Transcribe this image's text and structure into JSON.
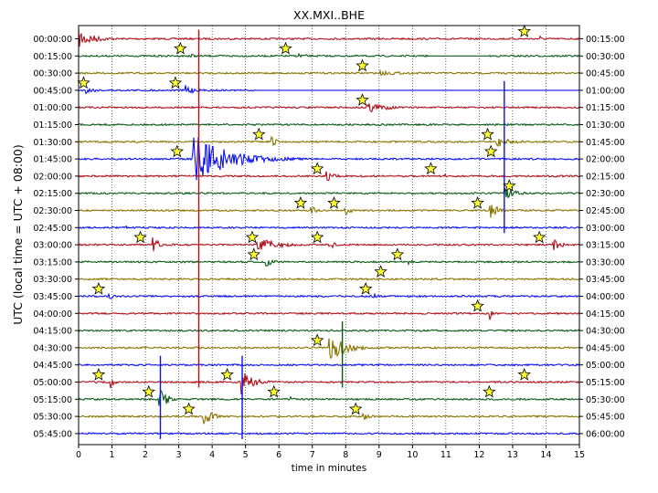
{
  "chart_data": {
    "type": "line",
    "title": "XX.MXI..BHE",
    "xlabel": "time in minutes",
    "ylabel": "UTC (local time = UTC + 08:00)",
    "xlim": [
      0,
      15
    ],
    "x_ticks": [
      "0",
      "1",
      "2",
      "3",
      "4",
      "5",
      "6",
      "7",
      "8",
      "9",
      "10",
      "11",
      "12",
      "13",
      "14",
      "15"
    ],
    "left_labels": [
      "00:00:00",
      "00:15:00",
      "00:30:00",
      "00:45:00",
      "01:00:00",
      "01:15:00",
      "01:30:00",
      "01:45:00",
      "02:00:00",
      "02:15:00",
      "02:30:00",
      "02:45:00",
      "03:00:00",
      "03:15:00",
      "03:30:00",
      "03:45:00",
      "04:00:00",
      "04:15:00",
      "04:30:00",
      "04:45:00",
      "05:00:00",
      "05:15:00",
      "05:30:00",
      "05:45:00"
    ],
    "right_labels": [
      "00:15:00",
      "00:30:00",
      "00:45:00",
      "01:00:00",
      "01:15:00",
      "01:30:00",
      "01:45:00",
      "02:00:00",
      "02:15:00",
      "02:30:00",
      "02:45:00",
      "03:00:00",
      "03:15:00",
      "03:30:00",
      "03:45:00",
      "04:00:00",
      "04:15:00",
      "04:30:00",
      "04:45:00",
      "05:00:00",
      "05:15:00",
      "05:30:00",
      "05:45:00",
      "06:00:00"
    ],
    "trace_colors": [
      "#b0101a",
      "#0c5a17",
      "#8a7500",
      "#0a10f0"
    ],
    "grid": "vertical dotted at each minute",
    "star_color": "#ffff33",
    "events": [
      {
        "row": 0,
        "minute": 13.35
      },
      {
        "row": 1,
        "minute": 3.05
      },
      {
        "row": 1,
        "minute": 6.2
      },
      {
        "row": 2,
        "minute": 8.5
      },
      {
        "row": 3,
        "minute": 0.15
      },
      {
        "row": 3,
        "minute": 2.9
      },
      {
        "row": 4,
        "minute": 8.5
      },
      {
        "row": 6,
        "minute": 5.4
      },
      {
        "row": 6,
        "minute": 12.25
      },
      {
        "row": 7,
        "minute": 2.95
      },
      {
        "row": 7,
        "minute": 12.35
      },
      {
        "row": 8,
        "minute": 7.15
      },
      {
        "row": 8,
        "minute": 10.55
      },
      {
        "row": 9,
        "minute": 12.9
      },
      {
        "row": 10,
        "minute": 6.65
      },
      {
        "row": 10,
        "minute": 7.65
      },
      {
        "row": 10,
        "minute": 11.95
      },
      {
        "row": 12,
        "minute": 1.85
      },
      {
        "row": 12,
        "minute": 5.2
      },
      {
        "row": 12,
        "minute": 7.15
      },
      {
        "row": 12,
        "minute": 13.8
      },
      {
        "row": 13,
        "minute": 5.25
      },
      {
        "row": 13,
        "minute": 9.55
      },
      {
        "row": 14,
        "minute": 9.05
      },
      {
        "row": 15,
        "minute": 0.6
      },
      {
        "row": 15,
        "minute": 8.6
      },
      {
        "row": 16,
        "minute": 11.95
      },
      {
        "row": 18,
        "minute": 7.15
      },
      {
        "row": 20,
        "minute": 0.6
      },
      {
        "row": 20,
        "minute": 4.45
      },
      {
        "row": 20,
        "minute": 13.35
      },
      {
        "row": 21,
        "minute": 2.1
      },
      {
        "row": 21,
        "minute": 5.85
      },
      {
        "row": 21,
        "minute": 12.3
      },
      {
        "row": 22,
        "minute": 3.3
      },
      {
        "row": 22,
        "minute": 8.3
      }
    ],
    "bursts": [
      {
        "row": 0,
        "minute": 0.0,
        "amp": 11,
        "dur": 1.6
      },
      {
        "row": 0,
        "minute": 13.8,
        "amp": 7,
        "dur": 0.15
      },
      {
        "row": 1,
        "minute": 3.3,
        "amp": 6,
        "dur": 0.4
      },
      {
        "row": 1,
        "minute": 6.55,
        "amp": 4,
        "dur": 0.9
      },
      {
        "row": 2,
        "minute": 9.0,
        "amp": 3,
        "dur": 2.5
      },
      {
        "row": 3,
        "minute": 0.2,
        "amp": 4,
        "dur": 1.2
      },
      {
        "row": 3,
        "minute": 3.15,
        "amp": 9,
        "dur": 0.8
      },
      {
        "row": 4,
        "minute": 8.6,
        "amp": 7,
        "dur": 2.0
      },
      {
        "row": 6,
        "minute": 5.75,
        "amp": 7,
        "dur": 0.6
      },
      {
        "row": 6,
        "minute": 12.5,
        "amp": 7,
        "dur": 1.5
      },
      {
        "row": 7,
        "minute": 3.4,
        "amp": 30,
        "dur": 3.5
      },
      {
        "row": 8,
        "minute": 7.4,
        "amp": 7,
        "dur": 0.8
      },
      {
        "row": 8,
        "minute": 10.95,
        "amp": 12,
        "dur": 0.1
      },
      {
        "row": 9,
        "minute": 12.75,
        "amp": 8,
        "dur": 1.2
      },
      {
        "row": 10,
        "minute": 6.95,
        "amp": 10,
        "dur": 0.4
      },
      {
        "row": 10,
        "minute": 7.95,
        "amp": 7,
        "dur": 0.6
      },
      {
        "row": 10,
        "minute": 12.3,
        "amp": 11,
        "dur": 0.8
      },
      {
        "row": 11,
        "minute": 1.4,
        "amp": 4,
        "dur": 0.2
      },
      {
        "row": 12,
        "minute": 2.2,
        "amp": 9,
        "dur": 0.8
      },
      {
        "row": 12,
        "minute": 5.3,
        "amp": 8,
        "dur": 2.5
      },
      {
        "row": 12,
        "minute": 7.5,
        "amp": 8,
        "dur": 0.5
      },
      {
        "row": 12,
        "minute": 14.2,
        "amp": 8,
        "dur": 0.8
      },
      {
        "row": 13,
        "minute": 5.6,
        "amp": 8,
        "dur": 0.6
      },
      {
        "row": 13,
        "minute": 9.8,
        "amp": 4,
        "dur": 1.0
      },
      {
        "row": 15,
        "minute": 0.9,
        "amp": 5,
        "dur": 0.5
      },
      {
        "row": 15,
        "minute": 8.8,
        "amp": 5,
        "dur": 0.6
      },
      {
        "row": 16,
        "minute": 12.3,
        "amp": 10,
        "dur": 0.2
      },
      {
        "row": 18,
        "minute": 7.5,
        "amp": 16,
        "dur": 1.6
      },
      {
        "row": 20,
        "minute": 0.95,
        "amp": 8,
        "dur": 0.4
      },
      {
        "row": 20,
        "minute": 4.85,
        "amp": 16,
        "dur": 1.3
      },
      {
        "row": 21,
        "minute": 2.4,
        "amp": 14,
        "dur": 0.8
      },
      {
        "row": 21,
        "minute": 6.3,
        "amp": 7,
        "dur": 0.3
      },
      {
        "row": 22,
        "minute": 3.7,
        "amp": 11,
        "dur": 1.0
      },
      {
        "row": 22,
        "minute": 8.5,
        "amp": 5,
        "dur": 0.8
      }
    ],
    "spikes": [
      {
        "minute": 3.6,
        "from_row": 0,
        "to_row": 20
      },
      {
        "minute": 4.9,
        "from_row": 19,
        "to_row": 23
      },
      {
        "minute": 12.75,
        "from_row": 3,
        "to_row": 11
      },
      {
        "minute": 2.45,
        "from_row": 19,
        "to_row": 23
      },
      {
        "minute": 7.9,
        "from_row": 17,
        "to_row": 20
      }
    ],
    "gaps": [
      {
        "row": 1,
        "from": 10.5,
        "to": 12.3
      },
      {
        "row": 3,
        "from": 5.3,
        "to": 15
      }
    ]
  }
}
